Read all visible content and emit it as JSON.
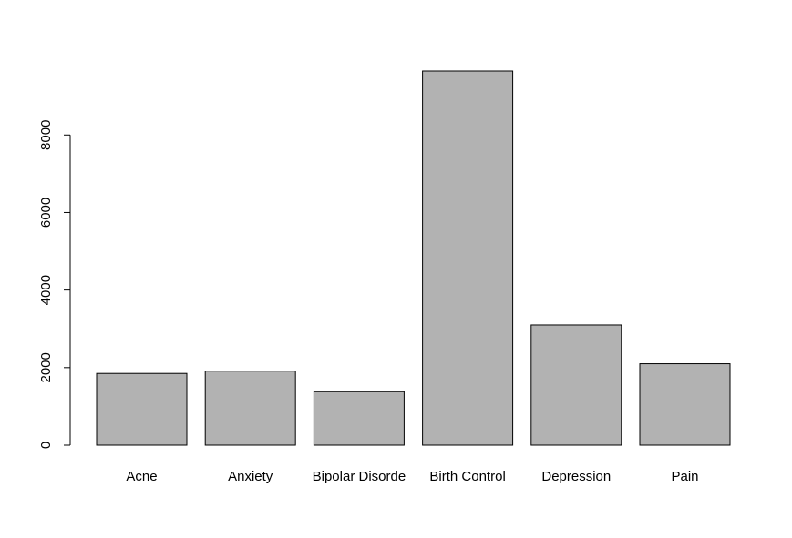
{
  "chart_data": {
    "type": "bar",
    "categories": [
      "Acne",
      "Anxiety",
      "Bipolar Disorde",
      "Birth Control",
      "Depression",
      "Pain"
    ],
    "values": [
      1850,
      1910,
      1380,
      9650,
      3100,
      2100
    ],
    "title": "",
    "xlabel": "",
    "ylabel": "",
    "ylim": [
      0,
      9650
    ],
    "yticks": [
      "0",
      "2000",
      "4000",
      "6000",
      "8000"
    ],
    "bar_color": "#b2b2b2",
    "grid": false
  }
}
